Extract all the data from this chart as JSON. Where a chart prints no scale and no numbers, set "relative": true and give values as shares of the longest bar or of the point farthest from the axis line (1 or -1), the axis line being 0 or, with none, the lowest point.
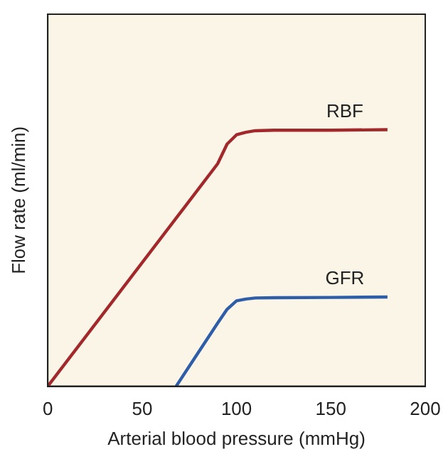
{
  "chart_data": {
    "type": "line",
    "relative": true,
    "xlabel": "Arterial blood pressure (mmHg)",
    "ylabel": "Flow rate (ml/min)",
    "xlim": [
      0,
      200
    ],
    "xticks": [
      0,
      50,
      100,
      150,
      200
    ],
    "grid": false,
    "legend": false,
    "marker": "none",
    "line_style": "solid",
    "series": [
      {
        "name": "RBF",
        "color": "#a3282b",
        "x": [
          0,
          90,
          95,
          100,
          105,
          110,
          120,
          150,
          180
        ],
        "values": [
          0,
          0.867,
          0.944,
          0.98,
          0.99,
          0.996,
          0.998,
          0.998,
          1
        ]
      },
      {
        "name": "GFR",
        "color": "#2f5ea8",
        "x": [
          68,
          90,
          95,
          100,
          105,
          110,
          120,
          150,
          180
        ],
        "values": [
          0,
          0.246,
          0.3,
          0.333,
          0.34,
          0.344,
          0.345,
          0.346,
          0.348
        ]
      }
    ]
  }
}
